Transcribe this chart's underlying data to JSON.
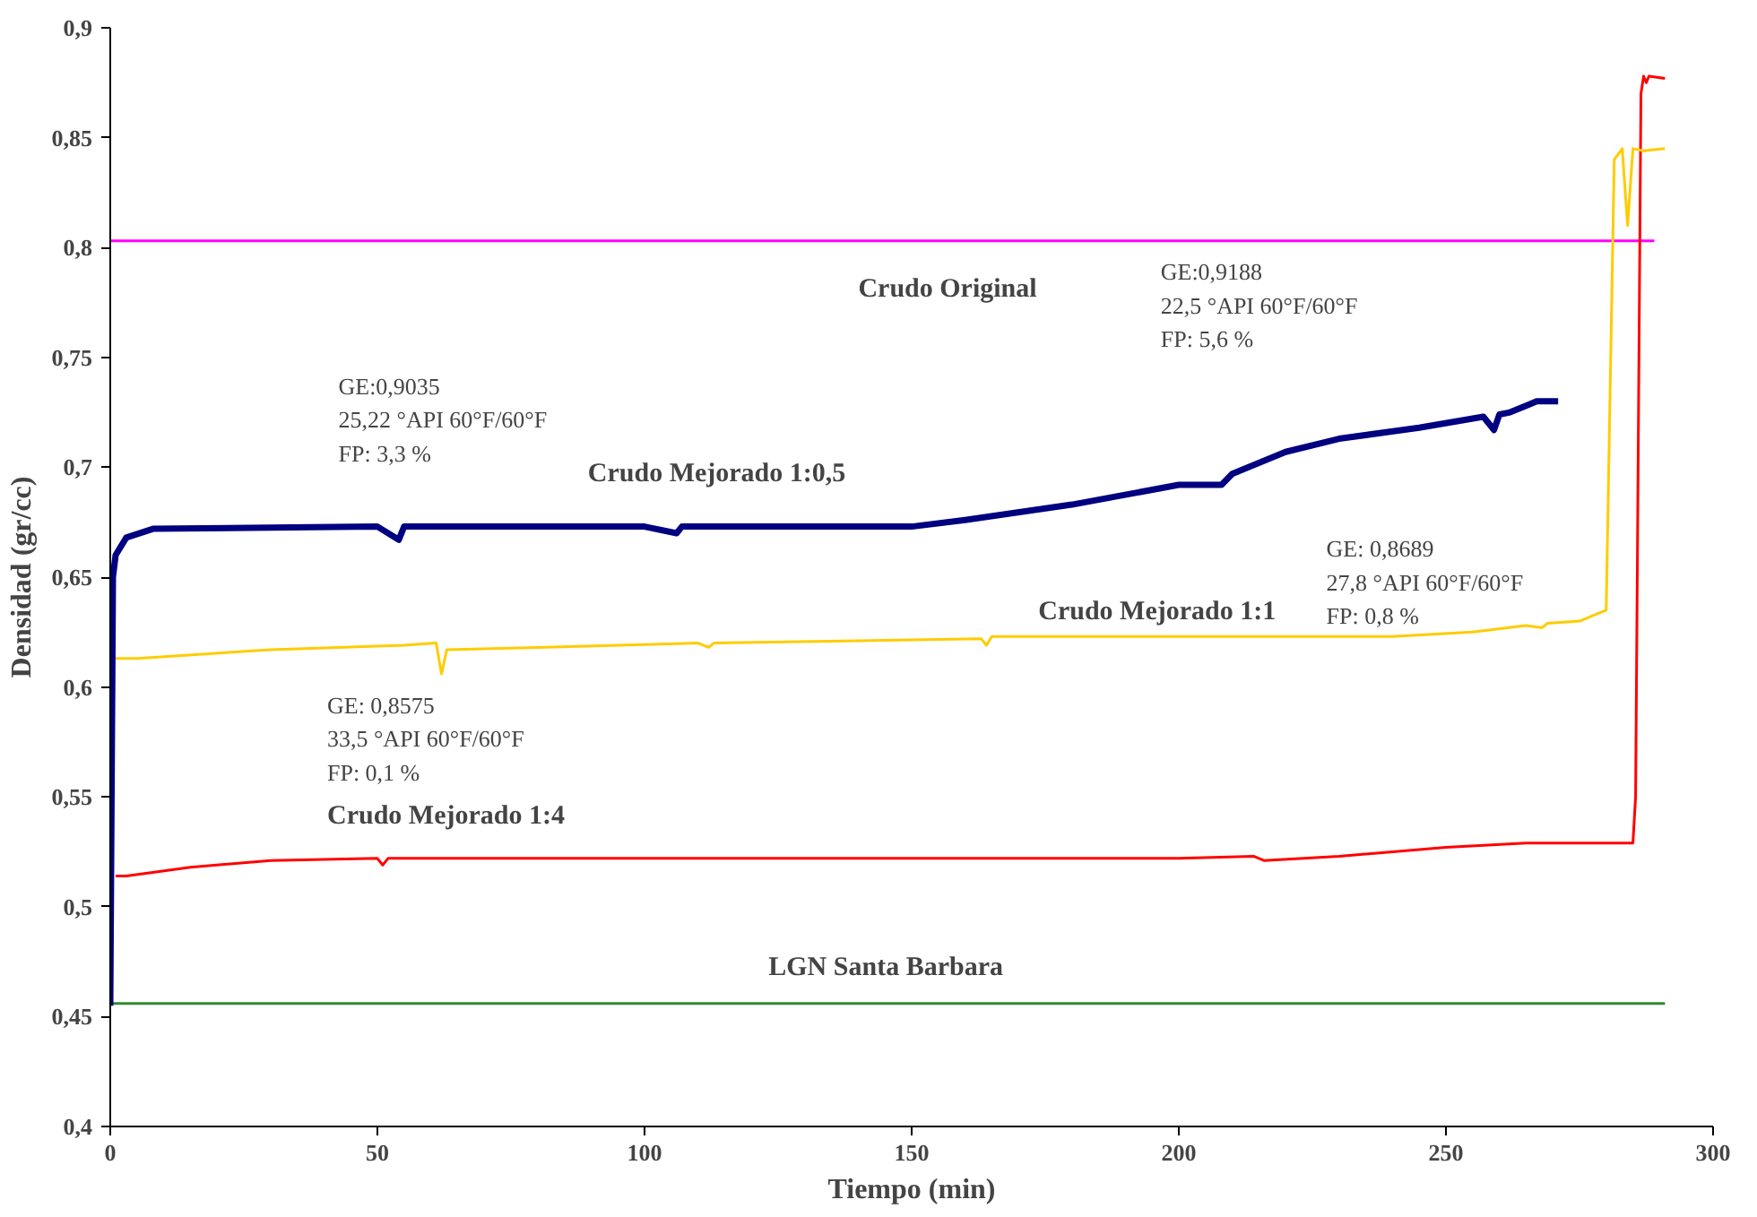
{
  "chart_data": {
    "type": "line",
    "xlabel": "Tiempo (min)",
    "ylabel": "Densidad (gr/cc)",
    "xlim": [
      0,
      300
    ],
    "xticks": [
      0,
      50,
      100,
      150,
      200,
      250,
      300
    ],
    "ylim": [
      0.4,
      0.9
    ],
    "yticks": [
      {
        "value": 0.4,
        "label": "0,4"
      },
      {
        "value": 0.45,
        "label": "0,45"
      },
      {
        "value": 0.5,
        "label": "0,5"
      },
      {
        "value": 0.55,
        "label": "0,55"
      },
      {
        "value": 0.6,
        "label": "0,6"
      },
      {
        "value": 0.65,
        "label": "0,65"
      },
      {
        "value": 0.7,
        "label": "0,7"
      },
      {
        "value": 0.75,
        "label": "0,75"
      },
      {
        "value": 0.8,
        "label": "0,8"
      },
      {
        "value": 0.85,
        "label": "0,85"
      },
      {
        "value": 0.9,
        "label": "0,9"
      }
    ],
    "grid": false,
    "legend": false,
    "marker": "none",
    "line_style": "solid",
    "series": [
      {
        "name": "Crudo Original",
        "color": "#ff00ff",
        "x": [
          0,
          50,
          100,
          150,
          200,
          250,
          289
        ],
        "values": [
          0.803,
          0.803,
          0.803,
          0.803,
          0.803,
          0.803,
          0.803
        ]
      },
      {
        "name": "LGN Santa Barbara",
        "color": "#2e8b2e",
        "x": [
          0,
          50,
          100,
          150,
          200,
          250,
          291
        ],
        "values": [
          0.456,
          0.456,
          0.456,
          0.456,
          0.456,
          0.456,
          0.456
        ]
      },
      {
        "name": "Crudo Mejorado 1:4",
        "color": "#ff0000",
        "x": [
          1,
          3,
          15,
          30,
          50,
          51,
          52,
          100,
          200,
          214,
          216,
          230,
          250,
          265,
          285,
          285.5,
          286.5,
          287,
          287.5,
          288,
          291
        ],
        "values": [
          0.514,
          0.514,
          0.518,
          0.521,
          0.522,
          0.519,
          0.522,
          0.522,
          0.522,
          0.523,
          0.521,
          0.523,
          0.527,
          0.529,
          0.529,
          0.55,
          0.87,
          0.878,
          0.875,
          0.878,
          0.877
        ]
      },
      {
        "name": "Crudo Mejorado 1:1",
        "color": "#ffcc00",
        "x": [
          1,
          5,
          30,
          55,
          61,
          62,
          63,
          80,
          110,
          112,
          113,
          140,
          163,
          164,
          165,
          240,
          255,
          265,
          268,
          269,
          275,
          280,
          281.5,
          283,
          284,
          285,
          287,
          291
        ],
        "values": [
          0.613,
          0.613,
          0.617,
          0.619,
          0.62,
          0.606,
          0.617,
          0.618,
          0.62,
          0.618,
          0.62,
          0.621,
          0.622,
          0.619,
          0.623,
          0.623,
          0.625,
          0.628,
          0.627,
          0.629,
          0.63,
          0.635,
          0.84,
          0.845,
          0.81,
          0.845,
          0.844,
          0.845
        ]
      },
      {
        "name": "Crudo Mejorado 1:0,5",
        "color": "#000080",
        "x": [
          0,
          0.5,
          1,
          3,
          8,
          50,
          54,
          55,
          100,
          106,
          107,
          150,
          160,
          180,
          200,
          208,
          210,
          220,
          230,
          245,
          257,
          259,
          260,
          262,
          265,
          267,
          271
        ],
        "values": [
          0.455,
          0.65,
          0.66,
          0.668,
          0.672,
          0.673,
          0.667,
          0.673,
          0.673,
          0.67,
          0.673,
          0.673,
          0.676,
          0.683,
          0.692,
          0.692,
          0.697,
          0.707,
          0.713,
          0.718,
          0.723,
          0.717,
          0.724,
          0.725,
          0.728,
          0.73,
          0.73
        ]
      }
    ],
    "annotations": [
      "GE:0,9188\n22,5 °API 60°F/60°F\nFP: 5,6 %",
      "GE:0,9035\n25,22 °API 60°F/60°F\nFP: 3,3 %",
      "GE: 0,8689\n 27,8 °API 60°F/60°F\nFP: 0,8 %",
      "GE: 0,8575\n 33,5 °API 60°F/60°F\nFP: 0,1 %"
    ]
  }
}
